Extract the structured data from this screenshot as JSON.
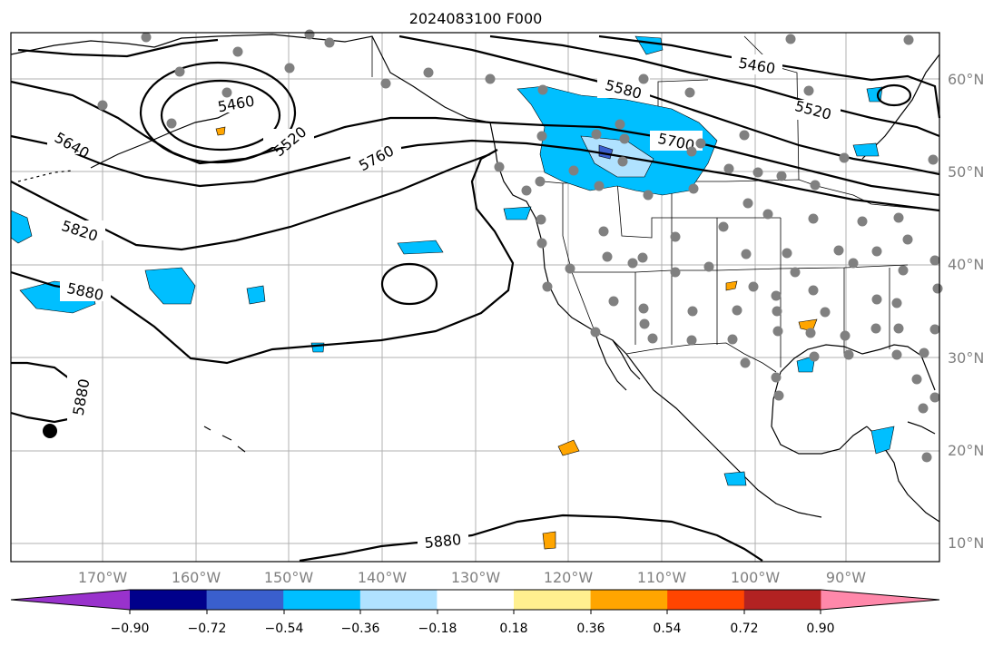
{
  "title": "2024083100 F000",
  "lon_ticks": [
    "170°W",
    "160°W",
    "150°W",
    "140°W",
    "130°W",
    "120°W",
    "110°W",
    "100°W",
    "90°W"
  ],
  "lat_ticks": [
    "60°N",
    "50°N",
    "40°N",
    "30°N",
    "20°N",
    "10°N"
  ],
  "colorbar": {
    "tick_labels": [
      "−0.90",
      "−0.72",
      "−0.54",
      "−0.36",
      "−0.18",
      "0.18",
      "0.36",
      "0.54",
      "0.72",
      "0.90"
    ],
    "colors": [
      "#9932cc",
      "#00008b",
      "#3a5fcd",
      "#00bfff",
      "#b0e2ff",
      "#ffffff",
      "#fff08f",
      "#ffa500",
      "#ff4500",
      "#b22222",
      "#ff88aa"
    ]
  },
  "contour_labels": {
    "l5460_ne": "5460",
    "l5580": "5580",
    "l5520_e": "5520",
    "l5700": "5700",
    "l5460_w": "5460",
    "l5520_w": "5520",
    "l5640": "5640",
    "l5760": "5760",
    "l5820": "5820",
    "l5880_w": "5880",
    "l5880_sw": "5880",
    "l5880_s": "5880"
  },
  "colors": {
    "contour": "#000000",
    "station": "#808080",
    "grid": "#b0b0b0"
  }
}
